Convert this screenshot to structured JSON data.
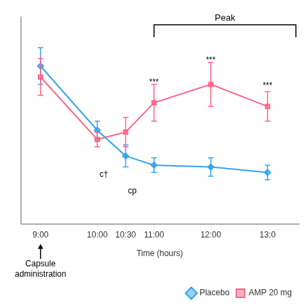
{
  "chart_data": {
    "type": "line",
    "xlabel": "Time (hours)",
    "x": [
      9.0,
      10.0,
      10.5,
      11.0,
      12.0,
      13.0
    ],
    "series": [
      {
        "name": "Placebo",
        "marker": "diamond",
        "values": [
          0.78,
          0.43,
          0.29,
          0.24,
          0.23,
          0.2
        ],
        "errors": [
          0.1,
          0.05,
          0.06,
          0.04,
          0.05,
          0.04
        ]
      },
      {
        "name": "AMP 20 mg",
        "marker": "square",
        "values": [
          0.72,
          0.38,
          0.42,
          0.58,
          0.68,
          0.56
        ],
        "errors": [
          0.1,
          0.04,
          0.08,
          0.1,
          0.12,
          0.08
        ]
      }
    ],
    "xlim": [
      8.65,
      13.55
    ],
    "xticks": [
      {
        "value": 9.0,
        "label": "9:00"
      },
      {
        "value": 10.0,
        "label": "10:00"
      },
      {
        "value": 10.5,
        "label": "10:30"
      },
      {
        "value": 11.0,
        "label": "11:00"
      },
      {
        "value": 12.0,
        "label": "12:00"
      },
      {
        "value": 13.0,
        "label": "13:0"
      }
    ],
    "ylim": [
      -0.08,
      1.05
    ],
    "grid": false,
    "legend": "lower right",
    "tick_labels": "x",
    "annotations": [
      {
        "text": "***",
        "x": 11.0,
        "y": 0.67,
        "anchor": "bottom"
      },
      {
        "text": "***",
        "x": 12.0,
        "y": 0.79,
        "anchor": "bottom"
      },
      {
        "text": "***",
        "x": 13.0,
        "y": 0.65,
        "anchor": "bottom"
      },
      {
        "text": "c†",
        "x": 10.04,
        "y": 0.21,
        "anchor": "top-left"
      },
      {
        "text": "cp",
        "x": 10.54,
        "y": 0.12,
        "anchor": "top-left"
      },
      {
        "text": "Peak",
        "x": [
          11.0,
          13.5
        ],
        "kind": "bracket"
      },
      {
        "text": "Capsule\nadministration",
        "x": 9.0,
        "kind": "arrow"
      }
    ]
  }
}
